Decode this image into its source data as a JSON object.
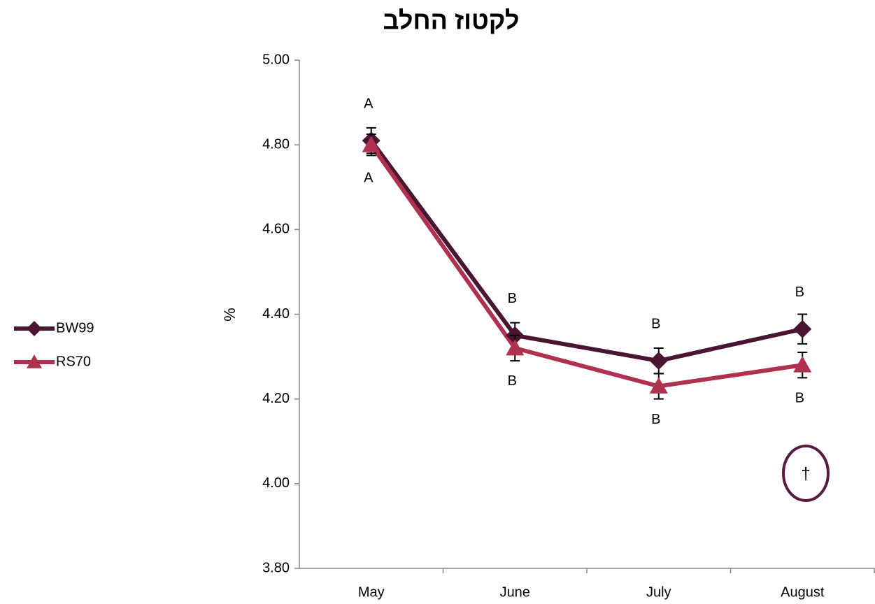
{
  "chart_data": {
    "type": "line",
    "title": "לקטוז החלב",
    "y_label": "%",
    "categories": [
      "May",
      "June",
      "July",
      "August"
    ],
    "series": [
      {
        "name": "BW99",
        "color": "#4a1530",
        "marker": "diamond",
        "values": [
          4.81,
          4.35,
          4.29,
          4.365
        ],
        "errors": [
          0.03,
          0.03,
          0.03,
          0.035
        ],
        "letters": [
          "A",
          "B",
          "B",
          "B"
        ]
      },
      {
        "name": "RS70",
        "color": "#b03050",
        "marker": "triangle",
        "values": [
          4.8,
          4.32,
          4.23,
          4.28
        ],
        "errors": [
          0.025,
          0.03,
          0.03,
          0.03
        ],
        "letters": [
          "A",
          "B",
          "B",
          "B"
        ]
      }
    ],
    "ylim": [
      3.8,
      5.0
    ],
    "yticks": [
      {
        "value": 3.8,
        "label": "3.80"
      },
      {
        "value": 4.0,
        "label": "4.00"
      },
      {
        "value": 4.2,
        "label": "4.20"
      },
      {
        "value": 4.4,
        "label": "4.40"
      },
      {
        "value": 4.6,
        "label": "4.60"
      },
      {
        "value": 4.8,
        "label": "4.80"
      },
      {
        "value": 5.0,
        "label": "5.00"
      }
    ],
    "note": "†",
    "legend": "left",
    "grid": false
  }
}
